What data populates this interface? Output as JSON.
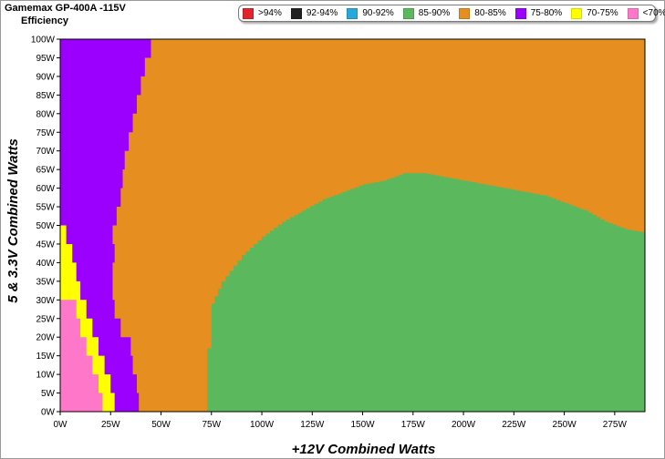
{
  "title": "Gamemax GP-400A -115V",
  "subtitle": "Efficiency",
  "legend": [
    {
      "label": ">94%",
      "color": "#e0262c"
    },
    {
      "label": "92-94%",
      "color": "#222222"
    },
    {
      "label": "90-92%",
      "color": "#28a7dc"
    },
    {
      "label": "85-90%",
      "color": "#5cb85c"
    },
    {
      "label": "80-85%",
      "color": "#e68e1f"
    },
    {
      "label": "75-80%",
      "color": "#9b00ff"
    },
    {
      "label": "70-75%",
      "color": "#ffff00"
    },
    {
      "label": "<70%",
      "color": "#ff77c8"
    }
  ],
  "chart_data": {
    "type": "heatmap",
    "xlabel": "+12V Combined Watts",
    "ylabel": "5 & 3.3V Combined Watts",
    "xlim": [
      0,
      290
    ],
    "ylim": [
      0,
      100
    ],
    "x_ticks": [
      "0W",
      "25W",
      "50W",
      "75W",
      "100W",
      "125W",
      "150W",
      "175W",
      "200W",
      "225W",
      "250W",
      "275W"
    ],
    "y_ticks": [
      "0W",
      "5W",
      "10W",
      "15W",
      "20W",
      "25W",
      "30W",
      "35W",
      "40W",
      "45W",
      "50W",
      "55W",
      "60W",
      "65W",
      "70W",
      "75W",
      "80W",
      "85W",
      "90W",
      "95W",
      "100W"
    ],
    "background_band": "80-85%",
    "regions": [
      {
        "band": "75-80%",
        "boundary_12v_at_5v": [
          [
            0,
            39
          ],
          [
            5,
            38
          ],
          [
            10,
            36
          ],
          [
            15,
            35
          ],
          [
            20,
            30
          ],
          [
            25,
            27
          ],
          [
            30,
            26
          ],
          [
            35,
            26
          ],
          [
            40,
            27
          ],
          [
            45,
            26
          ],
          [
            50,
            28
          ],
          [
            55,
            30
          ],
          [
            60,
            31
          ],
          [
            65,
            32
          ],
          [
            70,
            34
          ],
          [
            75,
            36
          ],
          [
            80,
            38
          ],
          [
            85,
            40
          ],
          [
            90,
            42
          ],
          [
            95,
            45
          ],
          [
            100,
            46
          ]
        ]
      },
      {
        "band": "70-75%",
        "boundary_12v_at_5v": [
          [
            0,
            27
          ],
          [
            5,
            25
          ],
          [
            10,
            22
          ],
          [
            15,
            19
          ],
          [
            20,
            16
          ],
          [
            25,
            13
          ],
          [
            30,
            10
          ],
          [
            35,
            8
          ],
          [
            40,
            6
          ],
          [
            45,
            3
          ]
        ]
      },
      {
        "band": "<70%",
        "boundary_12v_at_5v": [
          [
            0,
            21
          ],
          [
            5,
            19
          ],
          [
            10,
            16
          ],
          [
            15,
            13
          ],
          [
            20,
            10
          ],
          [
            25,
            8
          ]
        ]
      },
      {
        "band": "85-90%",
        "top_5v_at_12v": [
          [
            72,
            0
          ],
          [
            73,
            17
          ],
          [
            75,
            29
          ],
          [
            80,
            35
          ],
          [
            90,
            42
          ],
          [
            100,
            47
          ],
          [
            110,
            51
          ],
          [
            120,
            54
          ],
          [
            130,
            57
          ],
          [
            140,
            59
          ],
          [
            150,
            61
          ],
          [
            160,
            62
          ],
          [
            170,
            64
          ],
          [
            180,
            64
          ],
          [
            190,
            63
          ],
          [
            200,
            62
          ],
          [
            210,
            61
          ],
          [
            220,
            60
          ],
          [
            230,
            59
          ],
          [
            240,
            58
          ],
          [
            250,
            56
          ],
          [
            260,
            54
          ],
          [
            270,
            51
          ],
          [
            280,
            49
          ],
          [
            290,
            48
          ]
        ]
      }
    ]
  }
}
